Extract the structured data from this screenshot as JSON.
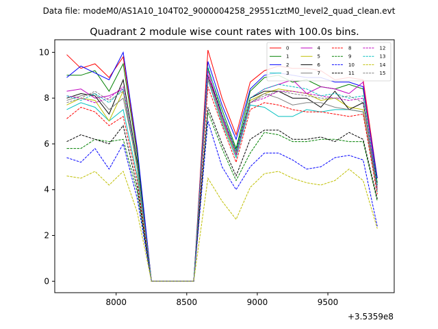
{
  "suptitle": "Data file: modeM0/AS1A10_104T02_9000004258_29551cztM0_level2_quad_clean.evt",
  "chart_data": {
    "type": "line",
    "title": "Quadrant 2 module wise count rates with 100.0s bins.",
    "xlabel": "",
    "ylabel": "",
    "x_offset_label": "+3.5359e8",
    "xlim": [
      7565,
      9970
    ],
    "ylim": [
      -0.5,
      10.55
    ],
    "xticks": [
      8000,
      8500,
      9000,
      9500
    ],
    "yticks": [
      0,
      2,
      4,
      6,
      8,
      10
    ],
    "grid": false,
    "legend": {
      "placement": "top-right",
      "ncol": 4
    },
    "x": [
      7650,
      7750,
      7850,
      7950,
      8050,
      8150,
      8250,
      8350,
      8450,
      8550,
      8650,
      8750,
      8850,
      8950,
      9050,
      9150,
      9250,
      9350,
      9450,
      9550,
      9650,
      9750,
      9850
    ],
    "series": [
      {
        "name": "0",
        "color": "#ff0000",
        "dash": false,
        "values": [
          9.9,
          9.3,
          9.5,
          8.9,
          9.8,
          5.7,
          0,
          0,
          0,
          0,
          10.1,
          8.0,
          6.4,
          8.7,
          9.2,
          9.4,
          9.3,
          9.3,
          9.2,
          8.8,
          8.9,
          8.8,
          4.5
        ]
      },
      {
        "name": "1",
        "color": "#008000",
        "dash": false,
        "values": [
          9.0,
          9.0,
          9.2,
          8.3,
          9.5,
          5.5,
          0,
          0,
          0,
          0,
          9.3,
          7.5,
          5.8,
          8.3,
          8.9,
          9.0,
          8.7,
          8.8,
          8.5,
          8.4,
          8.6,
          8.4,
          4.3
        ]
      },
      {
        "name": "2",
        "color": "#0000ff",
        "dash": false,
        "values": [
          8.9,
          9.4,
          9.1,
          8.8,
          10.0,
          5.8,
          0,
          0,
          0,
          0,
          9.6,
          7.7,
          6.2,
          8.4,
          9.0,
          9.1,
          9.0,
          8.9,
          8.9,
          8.7,
          8.7,
          8.5,
          4.5
        ]
      },
      {
        "name": "3",
        "color": "#00bfbf",
        "dash": false,
        "values": [
          7.5,
          7.8,
          7.6,
          7.0,
          7.5,
          4.6,
          0,
          0,
          0,
          0,
          8.8,
          6.9,
          5.4,
          7.7,
          7.6,
          7.2,
          7.2,
          7.5,
          7.4,
          7.5,
          7.5,
          7.4,
          3.9
        ]
      },
      {
        "name": "4",
        "color": "#bf00bf",
        "dash": false,
        "values": [
          8.3,
          8.4,
          8.0,
          8.1,
          8.4,
          5.0,
          0,
          0,
          0,
          0,
          9.2,
          7.2,
          5.6,
          8.0,
          8.4,
          8.6,
          8.8,
          8.2,
          8.5,
          8.4,
          8.2,
          8.7,
          4.1
        ]
      },
      {
        "name": "5",
        "color": "#bfbf00",
        "dash": false,
        "values": [
          7.7,
          8.0,
          7.9,
          7.0,
          8.3,
          4.9,
          0,
          0,
          0,
          0,
          9.0,
          7.0,
          5.5,
          7.9,
          8.2,
          8.4,
          8.3,
          8.2,
          7.9,
          8.0,
          7.6,
          7.5,
          4.0
        ]
      },
      {
        "name": "6",
        "color": "#000000",
        "dash": false,
        "values": [
          8.0,
          8.2,
          8.1,
          7.3,
          8.8,
          5.2,
          0,
          0,
          0,
          0,
          9.0,
          7.3,
          5.7,
          8.0,
          8.3,
          8.3,
          8.0,
          8.0,
          7.6,
          8.3,
          7.5,
          7.8,
          4.2
        ]
      },
      {
        "name": "7",
        "color": "#808080",
        "dash": false,
        "values": [
          7.9,
          8.1,
          8.2,
          7.5,
          8.0,
          5.1,
          0,
          0,
          0,
          0,
          8.9,
          7.1,
          5.6,
          7.8,
          8.2,
          8.0,
          7.7,
          7.8,
          7.8,
          7.6,
          7.5,
          7.4,
          4.1
        ]
      },
      {
        "name": "8",
        "color": "#ff0000",
        "dash": true,
        "values": [
          7.1,
          7.6,
          7.4,
          6.8,
          7.2,
          4.4,
          0,
          0,
          0,
          0,
          8.5,
          6.8,
          5.2,
          7.5,
          7.8,
          7.7,
          7.5,
          7.4,
          7.4,
          7.3,
          7.2,
          7.3,
          3.8
        ]
      },
      {
        "name": "9",
        "color": "#008000",
        "dash": true,
        "values": [
          5.8,
          5.8,
          6.2,
          6.1,
          6.2,
          3.9,
          0,
          0,
          0,
          0,
          7.4,
          5.8,
          4.4,
          5.6,
          6.5,
          6.4,
          6.1,
          6.1,
          6.2,
          6.2,
          6.1,
          6.1,
          3.5
        ]
      },
      {
        "name": "10",
        "color": "#0000ff",
        "dash": true,
        "values": [
          5.4,
          5.2,
          5.8,
          4.9,
          6.0,
          3.6,
          0,
          0,
          0,
          0,
          7.0,
          5.0,
          4.0,
          5.0,
          5.6,
          5.6,
          5.3,
          4.9,
          5.0,
          5.4,
          5.5,
          5.3,
          2.4
        ]
      },
      {
        "name": "11",
        "color": "#000000",
        "dash": true,
        "values": [
          6.1,
          6.4,
          6.2,
          6.0,
          6.8,
          4.1,
          0,
          0,
          0,
          0,
          7.6,
          6.0,
          4.6,
          6.2,
          6.6,
          6.6,
          6.2,
          6.2,
          6.3,
          6.1,
          6.5,
          6.2,
          3.6
        ]
      },
      {
        "name": "12",
        "color": "#bf00bf",
        "dash": true,
        "values": [
          8.1,
          8.0,
          7.8,
          8.0,
          8.5,
          5.0,
          0,
          0,
          0,
          0,
          9.0,
          7.2,
          5.5,
          7.8,
          8.0,
          8.3,
          8.3,
          8.2,
          8.1,
          8.0,
          7.9,
          8.0,
          4.0
        ]
      },
      {
        "name": "13",
        "color": "#00bfbf",
        "dash": true,
        "values": [
          8.1,
          7.9,
          8.2,
          7.8,
          8.4,
          5.0,
          0,
          0,
          0,
          0,
          9.4,
          7.3,
          5.7,
          8.0,
          8.4,
          8.6,
          8.5,
          8.4,
          8.1,
          8.2,
          8.0,
          8.1,
          4.2
        ]
      },
      {
        "name": "14",
        "color": "#bfbf00",
        "dash": true,
        "values": [
          4.6,
          4.5,
          4.8,
          4.2,
          4.8,
          3.0,
          0,
          0,
          0,
          0,
          4.5,
          3.5,
          2.7,
          4.1,
          4.7,
          4.8,
          4.5,
          4.3,
          4.2,
          4.4,
          4.9,
          4.4,
          2.3
        ]
      },
      {
        "name": "15",
        "color": "#808080",
        "dash": true,
        "values": [
          7.8,
          8.0,
          8.3,
          7.9,
          8.3,
          5.0,
          0,
          0,
          0,
          0,
          8.8,
          7.0,
          5.6,
          7.8,
          8.1,
          8.3,
          8.2,
          8.1,
          8.0,
          8.0,
          8.1,
          7.8,
          4.0
        ]
      }
    ]
  }
}
